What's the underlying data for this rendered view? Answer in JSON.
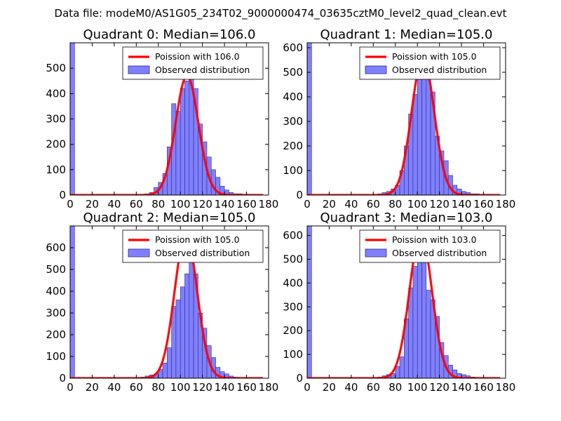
{
  "figure": {
    "suptitle": "Data file: modeM0/AS1G05_234T02_9000000474_03635cztM0_level2_quad_clean.evt"
  },
  "colors": {
    "bar_fill": "#8080ff",
    "bar_stroke": "#2a2a8a",
    "curve": "#ff0000",
    "axis": "#000000",
    "background": "#ffffff"
  },
  "chart_data": [
    {
      "type": "bar",
      "title": "Quadrant 0: Median=106.0",
      "median": 106.0,
      "legend": [
        "Poission with 106.0",
        "Observed distribution"
      ],
      "legend_position": "top-right",
      "xlim": [
        0,
        180
      ],
      "ylim": [
        0,
        600
      ],
      "xticks": [
        0,
        20,
        40,
        60,
        80,
        100,
        120,
        140,
        160,
        180
      ],
      "yticks": [
        0,
        100,
        200,
        300,
        400,
        500
      ],
      "bin_width": 4,
      "bins": [
        [
          0,
          600
        ],
        [
          64,
          2
        ],
        [
          68,
          5
        ],
        [
          72,
          10
        ],
        [
          76,
          30
        ],
        [
          80,
          50
        ],
        [
          84,
          85
        ],
        [
          88,
          190
        ],
        [
          92,
          360
        ],
        [
          96,
          330
        ],
        [
          100,
          420
        ],
        [
          104,
          450
        ],
        [
          108,
          460
        ],
        [
          112,
          420
        ],
        [
          116,
          280
        ],
        [
          120,
          210
        ],
        [
          124,
          150
        ],
        [
          128,
          100
        ],
        [
          132,
          70
        ],
        [
          136,
          35
        ],
        [
          140,
          20
        ],
        [
          144,
          10
        ],
        [
          148,
          5
        ],
        [
          152,
          5
        ]
      ],
      "curve": {
        "mu": 106.0,
        "peak": 470,
        "x_range": [
          0,
          175
        ]
      }
    },
    {
      "type": "bar",
      "title": "Quadrant 1: Median=105.0",
      "median": 105.0,
      "legend": [
        "Poission with 105.0",
        "Observed distribution"
      ],
      "legend_position": "top-right",
      "xlim": [
        0,
        180
      ],
      "ylim": [
        0,
        620
      ],
      "xticks": [
        0,
        20,
        40,
        60,
        80,
        100,
        120,
        140,
        160,
        180
      ],
      "yticks": [
        0,
        100,
        200,
        300,
        400,
        500,
        600
      ],
      "bin_width": 4,
      "bins": [
        [
          0,
          620
        ],
        [
          64,
          5
        ],
        [
          68,
          10
        ],
        [
          72,
          15
        ],
        [
          76,
          25
        ],
        [
          80,
          40
        ],
        [
          84,
          100
        ],
        [
          88,
          200
        ],
        [
          92,
          330
        ],
        [
          96,
          410
        ],
        [
          100,
          490
        ],
        [
          104,
          560
        ],
        [
          108,
          600
        ],
        [
          112,
          420
        ],
        [
          116,
          240
        ],
        [
          120,
          180
        ],
        [
          124,
          140
        ],
        [
          128,
          80
        ],
        [
          132,
          40
        ],
        [
          136,
          25
        ],
        [
          140,
          15
        ],
        [
          144,
          10
        ],
        [
          148,
          5
        ],
        [
          152,
          5
        ]
      ],
      "curve": {
        "mu": 105.0,
        "peak": 560,
        "x_range": [
          0,
          175
        ]
      }
    },
    {
      "type": "bar",
      "title": "Quadrant 2: Median=105.0",
      "median": 105.0,
      "legend": [
        "Poission with 105.0",
        "Observed distribution"
      ],
      "legend_position": "top-right",
      "xlim": [
        0,
        180
      ],
      "ylim": [
        0,
        700
      ],
      "xticks": [
        0,
        20,
        40,
        60,
        80,
        100,
        120,
        140,
        160,
        180
      ],
      "yticks": [
        0,
        100,
        200,
        300,
        400,
        500,
        600
      ],
      "bin_width": 4,
      "bins": [
        [
          0,
          700
        ],
        [
          64,
          5
        ],
        [
          68,
          10
        ],
        [
          72,
          15
        ],
        [
          76,
          20
        ],
        [
          80,
          40
        ],
        [
          84,
          70
        ],
        [
          88,
          140
        ],
        [
          92,
          330
        ],
        [
          96,
          360
        ],
        [
          100,
          420
        ],
        [
          104,
          480
        ],
        [
          108,
          680
        ],
        [
          112,
          480
        ],
        [
          116,
          300
        ],
        [
          120,
          230
        ],
        [
          124,
          150
        ],
        [
          128,
          95
        ],
        [
          132,
          50
        ],
        [
          136,
          30
        ],
        [
          140,
          20
        ],
        [
          144,
          10
        ],
        [
          148,
          5
        ]
      ],
      "curve": {
        "mu": 105.0,
        "peak": 660,
        "x_range": [
          0,
          175
        ]
      }
    },
    {
      "type": "bar",
      "title": "Quadrant 3: Median=103.0",
      "median": 103.0,
      "legend": [
        "Poission with 103.0",
        "Observed distribution"
      ],
      "legend_position": "top-right",
      "xlim": [
        0,
        180
      ],
      "ylim": [
        0,
        640
      ],
      "xticks": [
        0,
        20,
        40,
        60,
        80,
        100,
        120,
        140,
        160,
        180
      ],
      "yticks": [
        0,
        100,
        200,
        300,
        400,
        500,
        600
      ],
      "bin_width": 4,
      "bins": [
        [
          0,
          640
        ],
        [
          64,
          5
        ],
        [
          68,
          10
        ],
        [
          72,
          15
        ],
        [
          76,
          20
        ],
        [
          80,
          50
        ],
        [
          84,
          90
        ],
        [
          88,
          250
        ],
        [
          92,
          380
        ],
        [
          96,
          470
        ],
        [
          100,
          520
        ],
        [
          104,
          560
        ],
        [
          108,
          370
        ],
        [
          112,
          330
        ],
        [
          116,
          260
        ],
        [
          120,
          150
        ],
        [
          124,
          95
        ],
        [
          128,
          55
        ],
        [
          132,
          35
        ],
        [
          136,
          20
        ],
        [
          140,
          15
        ],
        [
          144,
          10
        ],
        [
          148,
          5
        ]
      ],
      "curve": {
        "mu": 103.0,
        "peak": 610,
        "x_range": [
          0,
          175
        ]
      }
    }
  ]
}
